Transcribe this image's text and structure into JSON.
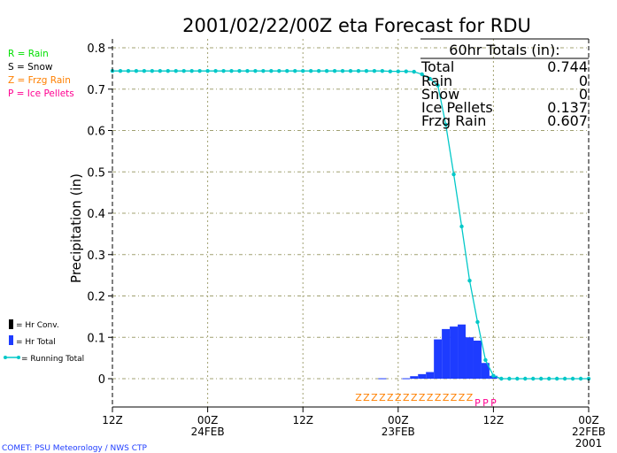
{
  "chart_data": {
    "type": "bar",
    "title": "2001/02/22/00Z eta Forecast for RDU",
    "ylabel": "Precipitation (in)",
    "xlabel": "",
    "ylim": [
      0,
      0.8
    ],
    "xlim_hours": [
      60,
      0
    ],
    "grid": true,
    "y_ticks": [
      "0",
      "0.1",
      "0.2",
      "0.3",
      "0.4",
      "0.5",
      "0.6",
      "0.7",
      "0.8"
    ],
    "x_ticks": [
      {
        "hour": 60,
        "lines": [
          "12Z"
        ]
      },
      {
        "hour": 48,
        "lines": [
          "00Z",
          "24FEB"
        ]
      },
      {
        "hour": 36,
        "lines": [
          "12Z"
        ]
      },
      {
        "hour": 24,
        "lines": [
          "00Z",
          "23FEB"
        ]
      },
      {
        "hour": 12,
        "lines": [
          "12Z"
        ]
      },
      {
        "hour": 0,
        "lines": [
          "00Z",
          "22FEB",
          "2001"
        ]
      }
    ],
    "hourly_total": [
      {
        "hour": 12,
        "value": 0.007
      },
      {
        "hour": 13,
        "value": 0.038
      },
      {
        "hour": 14,
        "value": 0.092
      },
      {
        "hour": 15,
        "value": 0.1
      },
      {
        "hour": 16,
        "value": 0.131
      },
      {
        "hour": 17,
        "value": 0.126
      },
      {
        "hour": 18,
        "value": 0.12
      },
      {
        "hour": 19,
        "value": 0.095
      },
      {
        "hour": 20,
        "value": 0.016
      },
      {
        "hour": 21,
        "value": 0.011
      },
      {
        "hour": 22,
        "value": 0.006
      },
      {
        "hour": 23,
        "value": 0.001
      },
      {
        "hour": 26,
        "value": 0.001
      }
    ],
    "running_total_final": 0.744,
    "precip_type_marks": [
      {
        "letter": "Z",
        "hours": [
          15,
          16,
          17,
          18,
          19,
          20,
          21,
          22,
          23,
          24,
          25,
          26,
          27,
          28,
          29
        ],
        "color": "#ff8000"
      },
      {
        "letter": "P",
        "hours": [
          12,
          13,
          14
        ],
        "color": "#ff0090"
      }
    ],
    "series_colors": {
      "hr_conv": "#000000",
      "hr_total": "#1e3cff",
      "running_total": "#00c8c8",
      "grid": "#a0a070"
    }
  },
  "type_legend": [
    {
      "text": "R = Rain",
      "color": "#00e000"
    },
    {
      "text": "S = Snow",
      "color": "#000000"
    },
    {
      "text": "Z = Frzg Rain",
      "color": "#ff8000"
    },
    {
      "text": "P = Ice Pellets",
      "color": "#ff0090"
    }
  ],
  "series_legend": [
    "= Hr Conv.",
    "= Hr Total",
    "= Running Total"
  ],
  "totals": {
    "header": "60hr Totals (in):",
    "rows": [
      {
        "label": "Total",
        "value": "0.744"
      },
      {
        "label": "Rain",
        "value": "0"
      },
      {
        "label": "Snow",
        "value": "0"
      },
      {
        "label": "Ice Pellets",
        "value": "0.137"
      },
      {
        "label": "Frzg Rain",
        "value": "0.607"
      }
    ]
  },
  "credit": "COMET:  PSU Meteorology / NWS CTP"
}
